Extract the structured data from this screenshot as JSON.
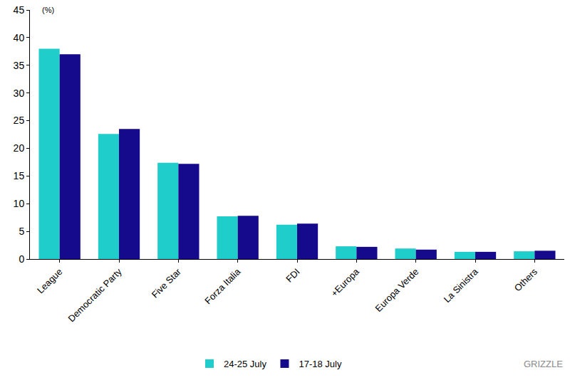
{
  "chart_data": {
    "type": "bar",
    "y_label": "(%)",
    "annotations": [
      "GRIZZLE"
    ],
    "categories": [
      "League",
      "Democratic Party",
      "Five Star",
      "Forza Italia",
      "FDI",
      "+Europa",
      "Europa Verde",
      "La Sinistra",
      "Others"
    ],
    "series": [
      {
        "name": "24-25 July",
        "color": "#1fcdcb",
        "values": [
          38.0,
          22.6,
          17.4,
          7.7,
          6.2,
          2.3,
          1.9,
          1.3,
          1.4
        ]
      },
      {
        "name": "17-18 July",
        "color": "#15098c",
        "values": [
          37.0,
          23.5,
          17.2,
          7.8,
          6.4,
          2.2,
          1.7,
          1.3,
          1.5
        ]
      }
    ],
    "ylim": [
      0,
      45
    ],
    "yticks": [
      0,
      5,
      10,
      15,
      20,
      25,
      30,
      35,
      40,
      45
    ],
    "grid": false,
    "legend": "bottom"
  }
}
